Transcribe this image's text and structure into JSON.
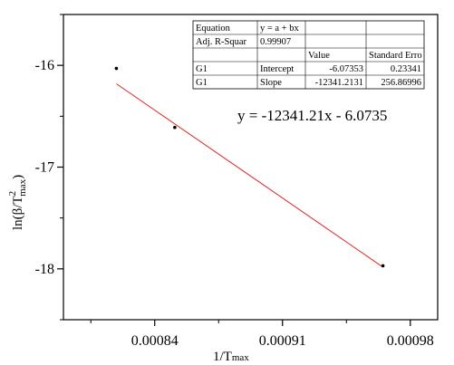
{
  "chart_data": {
    "type": "scatter",
    "x": [
      0.000819,
      0.000851,
      0.000965
    ],
    "y": [
      -16.03,
      -16.61,
      -17.97
    ],
    "xlim": [
      0.00079,
      0.000995
    ],
    "ylim": [
      -18.5,
      -15.5
    ],
    "xticks": [
      0.00084,
      0.00091,
      0.00098
    ],
    "xtick_labels": [
      "0.00084",
      "0.00091",
      "0.00098"
    ],
    "yticks": [
      -16,
      -17,
      -18
    ],
    "ytick_labels": [
      "-16",
      "-17",
      "-18"
    ],
    "xlabel": {
      "main": "1/T",
      "sub": "max"
    },
    "ylabel": {
      "pre": "ln(β/T",
      "sup": "2",
      "sub": "max",
      "post": ")"
    },
    "fit": {
      "slope": -12341.2131,
      "intercept": -6.07353,
      "equation_text": "y = -12341.21x - 6.0735",
      "line_color": "#e0261f"
    },
    "grid": false,
    "point_color": "#000000",
    "fit_table": [
      [
        "Equation",
        "y = a + bx",
        "",
        ""
      ],
      [
        "Adj. R-Squar",
        "0.99907",
        "",
        ""
      ],
      [
        "",
        "",
        "Value",
        "Standard Erro"
      ],
      [
        "G1",
        "Intercept",
        "-6.07353",
        "0.23341"
      ],
      [
        "G1",
        "Slope",
        "-12341.2131",
        "256.86996"
      ]
    ]
  }
}
